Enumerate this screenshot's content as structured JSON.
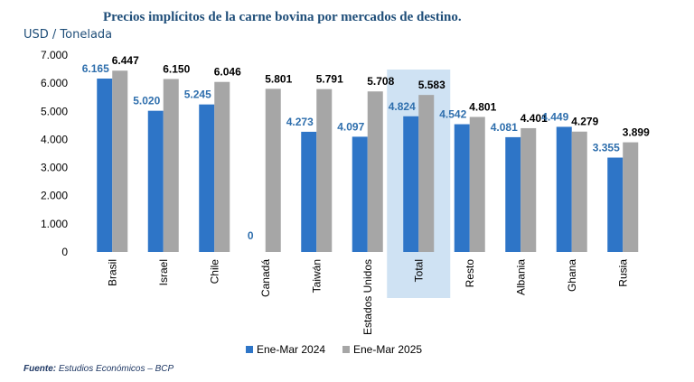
{
  "title": "Precios implícitos de la carne bovina por mercados de destino.",
  "unit_label": "USD / Tonelada",
  "source": {
    "prefix": "Fuente:",
    "text": " Estudios Económicos – BCP"
  },
  "chart_data": {
    "type": "bar",
    "categories": [
      "Brasil",
      "Israel",
      "Chile",
      "Canadá",
      "Taiwán",
      "Estados Unidos",
      "Total",
      "Resto",
      "Albania",
      "Ghana",
      "Rusia"
    ],
    "series": [
      {
        "name": "Ene-Mar 2024",
        "color": "#2e75c7",
        "label_color": "#2f6fad",
        "values": [
          6165,
          5020,
          5245,
          0,
          4273,
          4097,
          4824,
          4542,
          4081,
          4449,
          3355
        ],
        "labels": [
          "6.165",
          "5.020",
          "5.245",
          "0",
          "4.273",
          "4.097",
          "4.824",
          "4.542",
          "4.081",
          "4.449",
          "3.355"
        ]
      },
      {
        "name": "Ene-Mar 2025",
        "color": "#a6a6a6",
        "label_color": "#000000",
        "values": [
          6447,
          6150,
          6046,
          5801,
          5791,
          5708,
          5583,
          4801,
          4401,
          4279,
          3899
        ],
        "labels": [
          "6.447",
          "6.150",
          "6.046",
          "5.801",
          "5.791",
          "5.708",
          "5.583",
          "4.801",
          "4.401",
          "4.279",
          "3.899"
        ]
      }
    ],
    "yticks": [
      "0",
      "1.000",
      "2.000",
      "3.000",
      "4.000",
      "5.000",
      "6.000",
      "7.000"
    ],
    "ylim": [
      0,
      7000
    ],
    "highlight_category": "Total",
    "highlight_color": "#cfe2f3",
    "grid": false,
    "legend_position": "bottom"
  }
}
